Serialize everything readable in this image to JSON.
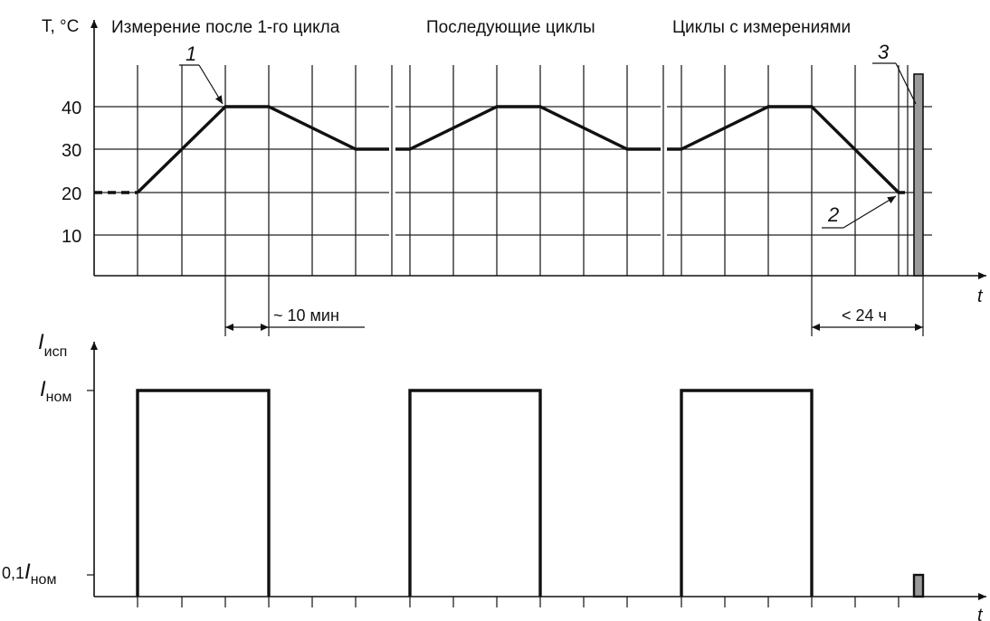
{
  "top_chart": {
    "y_label": "T, °C",
    "x_label": "t",
    "y_ticks": [
      "40",
      "30",
      "20",
      "10"
    ],
    "section_titles": [
      "Измерение после 1-го цикла",
      "Последующие циклы",
      "Циклы с измерениями"
    ],
    "callouts": [
      "1",
      "2",
      "3"
    ],
    "dimension_labels": [
      "~ 10 мин",
      "< 24 ч"
    ]
  },
  "bottom_chart": {
    "y_label_main": "I",
    "y_label_sub": "исп",
    "x_label": "t",
    "level_high_main": "I",
    "level_high_sub": "ном",
    "level_low_prefix": "0,1",
    "level_low_main": "I",
    "level_low_sub": "ном"
  },
  "colors": {
    "line": "#111111",
    "bar_fill": "#9a9a9a"
  }
}
